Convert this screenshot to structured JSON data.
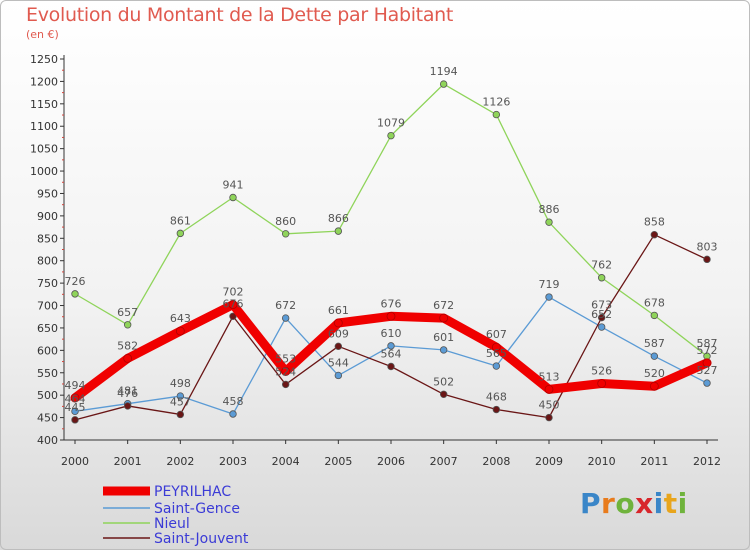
{
  "header": {
    "title": "Evolution du Montant de la Dette par Habitant",
    "subtitle": "(en €)"
  },
  "brand": {
    "text": "Proxiti",
    "letter_colors": [
      "#3a86c8",
      "#e87b1c",
      "#6fb33c",
      "#d8262b",
      "#3a86c8",
      "#e8a51c",
      "#6fb33c"
    ]
  },
  "chart_data": {
    "type": "line",
    "title": "Evolution du Montant de la Dette par Habitant",
    "subtitle": "(en €)",
    "xlabel": "",
    "ylabel": "",
    "x": [
      "2000",
      "2001",
      "2002",
      "2003",
      "2004",
      "2005",
      "2006",
      "2007",
      "2008",
      "2009",
      "2010",
      "2011",
      "2012"
    ],
    "ylim": [
      400,
      1250
    ],
    "yticks": [
      400,
      450,
      500,
      550,
      600,
      650,
      700,
      750,
      800,
      850,
      900,
      950,
      1000,
      1050,
      1100,
      1150,
      1200,
      1250
    ],
    "grid": false,
    "legend_position": "bottom-left",
    "series": [
      {
        "name": "PEYRILHAC",
        "color": "#f00000",
        "values": [
          494,
          582,
          643,
          702,
          553,
          661,
          676,
          672,
          607,
          513,
          526,
          520,
          572
        ]
      },
      {
        "name": "Saint-Gence",
        "color": "#5b9bd5",
        "values": [
          464,
          481,
          498,
          458,
          672,
          544,
          610,
          601,
          565,
          719,
          652,
          587,
          527
        ]
      },
      {
        "name": "Nieul",
        "color": "#8fd45a",
        "values": [
          726,
          657,
          861,
          941,
          860,
          866,
          1079,
          1194,
          1126,
          886,
          762,
          678,
          587
        ]
      },
      {
        "name": "Saint-Jouvent",
        "color": "#6a1616",
        "values": [
          445,
          476,
          457,
          676,
          524,
          609,
          564,
          502,
          468,
          450,
          673,
          858,
          803
        ]
      }
    ],
    "data_labels": [
      [
        "494",
        "582",
        "643",
        "702",
        "553",
        "661",
        "676",
        "672",
        "607",
        "513",
        "526",
        "520",
        "572"
      ],
      [
        "464",
        "481",
        "498",
        "458",
        "672",
        "544",
        "610",
        "601",
        "565",
        "719",
        "652",
        "587",
        "527"
      ],
      [
        "726",
        "657",
        "861",
        "941",
        "860",
        "866",
        "1079",
        "1194",
        "1126",
        "886",
        "762",
        "678",
        "587"
      ],
      [
        "445",
        "476",
        "457",
        "676",
        "524",
        "609",
        "564",
        "502",
        "468",
        "450",
        "673",
        "858",
        "803"
      ]
    ]
  }
}
